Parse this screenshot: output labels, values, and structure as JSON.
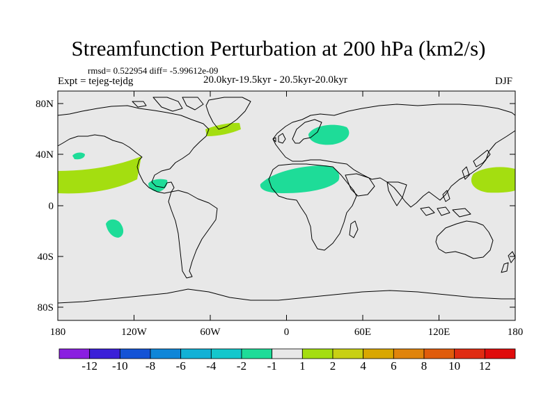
{
  "title": "Streamfunction Perturbation at 200 hPa (km2/s)",
  "stats": "rmsd= 0.522954  diff= -5.99612e-09",
  "experiment": "Expt = tejeg-tejdg",
  "period": "20.0kyr-19.5kyr - 20.5kyr-20.0kyr",
  "season": "DJF",
  "map": {
    "background_color": "#e8e8e8",
    "lat_ticks": [
      "80N",
      "40N",
      "0",
      "40S",
      "80S"
    ],
    "lon_ticks": [
      "180",
      "120W",
      "60W",
      "0",
      "60E",
      "120E",
      "180"
    ]
  },
  "colorbar": {
    "labels": [
      "-12",
      "-10",
      "-8",
      "-6",
      "-4",
      "-2",
      "-1",
      "1",
      "2",
      "4",
      "6",
      "8",
      "10",
      "12"
    ],
    "colors": [
      "#8a1fe0",
      "#3b1fd8",
      "#1453d6",
      "#0f86d8",
      "#12b1d6",
      "#14c7cc",
      "#1edc98",
      "#e8e8e8",
      "#a4de10",
      "#c8d014",
      "#d9a700",
      "#e0840c",
      "#e05c0c",
      "#e02c12",
      "#e00c0c"
    ]
  },
  "anomaly_regions": [
    {
      "name": "North Pacific",
      "sign": "positive",
      "color": "#a4de10"
    },
    {
      "name": "Labrador Sea",
      "sign": "positive",
      "color": "#a4de10"
    },
    {
      "name": "Central America",
      "sign": "negative",
      "color": "#1edc98"
    },
    {
      "name": "Northeast Pacific",
      "sign": "negative",
      "color": "#1edc98"
    },
    {
      "name": "South Pacific",
      "sign": "negative",
      "color": "#1edc98"
    },
    {
      "name": "Scandinavia",
      "sign": "negative",
      "color": "#1edc98"
    },
    {
      "name": "North Africa",
      "sign": "negative",
      "color": "#1edc98"
    },
    {
      "name": "West Pacific",
      "sign": "positive",
      "color": "#a4de10"
    }
  ]
}
